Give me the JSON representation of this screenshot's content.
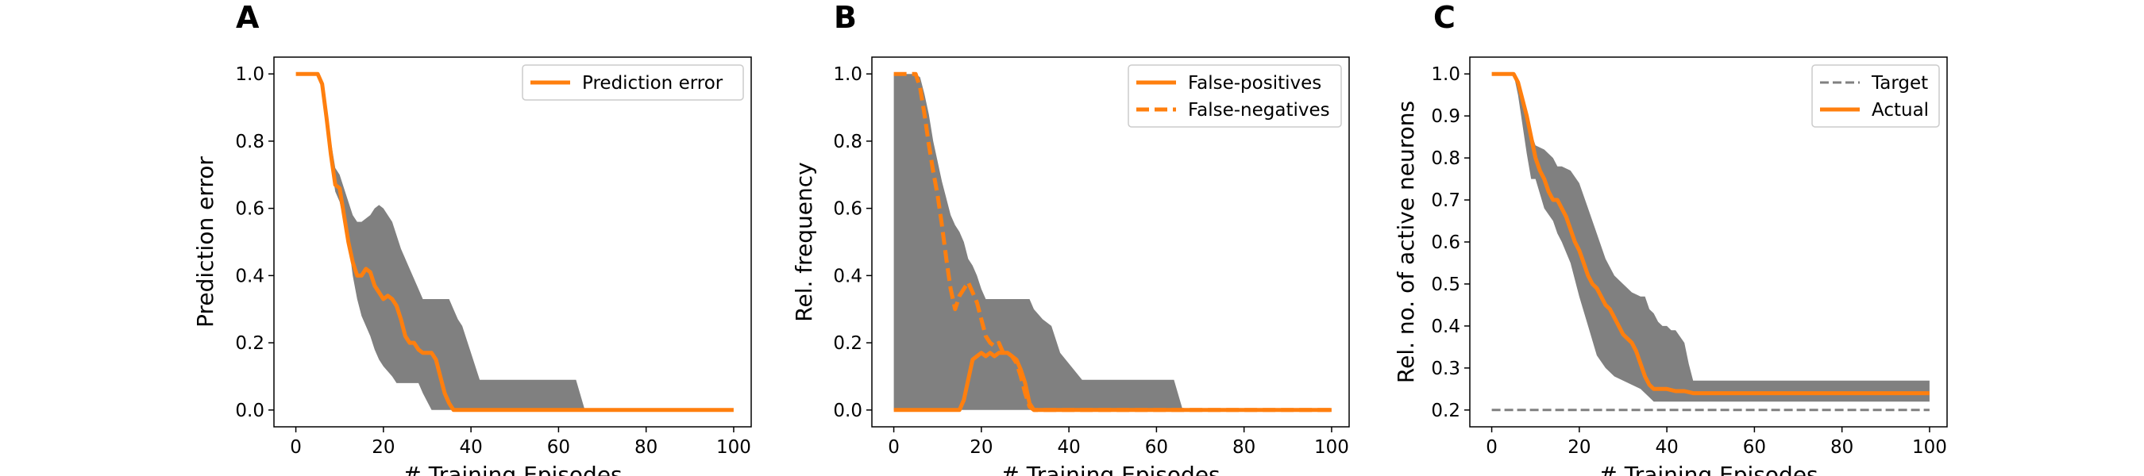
{
  "colors": {
    "actual": "#ff7f0e",
    "band": "#808080",
    "target": "#808080",
    "axis": "#000000",
    "legend_border": "#cccccc"
  },
  "chart_data": [
    {
      "panel_label": "A",
      "type": "line",
      "xlabel": "# Training Episodes",
      "ylabel": "Prediction error",
      "xlim": [
        -5,
        104
      ],
      "ylim": [
        -0.05,
        1.05
      ],
      "xticks": [
        0,
        20,
        40,
        60,
        80,
        100
      ],
      "yticks": [
        0.0,
        0.2,
        0.4,
        0.6,
        0.8,
        1.0
      ],
      "ytick_format": 1,
      "grid": false,
      "legend_position": "top-right",
      "band": {
        "x": [
          0,
          5,
          6,
          7,
          8,
          9,
          10,
          12,
          13,
          14,
          15,
          17,
          18,
          19,
          20,
          22,
          23,
          24,
          26,
          28,
          29,
          31,
          33,
          35,
          36,
          37,
          38,
          40,
          42,
          64,
          66,
          100
        ],
        "upper": [
          1.0,
          1.0,
          0.98,
          0.9,
          0.8,
          0.72,
          0.7,
          0.62,
          0.58,
          0.56,
          0.56,
          0.58,
          0.6,
          0.61,
          0.6,
          0.56,
          0.52,
          0.48,
          0.42,
          0.36,
          0.33,
          0.33,
          0.33,
          0.33,
          0.3,
          0.27,
          0.25,
          0.17,
          0.09,
          0.09,
          0.0,
          0.0
        ],
        "lower": [
          1.0,
          1.0,
          0.96,
          0.85,
          0.73,
          0.65,
          0.62,
          0.5,
          0.4,
          0.33,
          0.28,
          0.22,
          0.18,
          0.15,
          0.13,
          0.1,
          0.08,
          0.08,
          0.08,
          0.08,
          0.05,
          0.0,
          0.0,
          0.0,
          0.0,
          0.0,
          0.0,
          0.0,
          0.0,
          0.0,
          0.0,
          0.0
        ]
      },
      "series": [
        {
          "name": "Prediction error",
          "style": "solid",
          "x": [
            0,
            5,
            6,
            7,
            8,
            9,
            10,
            11,
            12,
            13,
            14,
            15,
            16,
            17,
            18,
            19,
            20,
            21,
            22,
            23,
            24,
            25,
            26,
            27,
            28,
            29,
            30,
            31,
            32,
            33,
            34,
            35,
            36,
            37,
            38,
            100
          ],
          "y": [
            1.0,
            1.0,
            0.97,
            0.87,
            0.76,
            0.67,
            0.66,
            0.58,
            0.5,
            0.44,
            0.4,
            0.4,
            0.42,
            0.41,
            0.37,
            0.35,
            0.33,
            0.34,
            0.33,
            0.31,
            0.27,
            0.22,
            0.2,
            0.2,
            0.18,
            0.17,
            0.17,
            0.17,
            0.15,
            0.1,
            0.05,
            0.02,
            0.0,
            0.0,
            0.0,
            0.0
          ]
        }
      ]
    },
    {
      "panel_label": "B",
      "type": "line",
      "xlabel": "# Training Episodes",
      "ylabel": "Rel. frequency",
      "xlim": [
        -5,
        104
      ],
      "ylim": [
        -0.05,
        1.05
      ],
      "xticks": [
        0,
        20,
        40,
        60,
        80,
        100
      ],
      "yticks": [
        0.0,
        0.2,
        0.4,
        0.6,
        0.8,
        1.0
      ],
      "ytick_format": 1,
      "grid": false,
      "legend_position": "top-right",
      "band": {
        "x": [
          0,
          5,
          6,
          7,
          8,
          9,
          10,
          11,
          12,
          13,
          14,
          15,
          16,
          17,
          18,
          19,
          20,
          21,
          22,
          23,
          24,
          26,
          28,
          30,
          31,
          32,
          34,
          36,
          38,
          43,
          64,
          66,
          100
        ],
        "upper": [
          1.0,
          1.0,
          0.99,
          0.94,
          0.88,
          0.8,
          0.74,
          0.68,
          0.63,
          0.58,
          0.55,
          0.53,
          0.5,
          0.45,
          0.43,
          0.4,
          0.36,
          0.33,
          0.33,
          0.33,
          0.33,
          0.33,
          0.33,
          0.33,
          0.33,
          0.3,
          0.27,
          0.25,
          0.17,
          0.09,
          0.09,
          0.0,
          0.0
        ],
        "lower": [
          0.0,
          0.0,
          0.0,
          0.0,
          0.0,
          0.0,
          0.0,
          0.0,
          0.0,
          0.0,
          0.0,
          0.0,
          0.0,
          0.0,
          0.0,
          0.0,
          0.0,
          0.0,
          0.0,
          0.0,
          0.0,
          0.0,
          0.0,
          0.0,
          0.0,
          0.0,
          0.0,
          0.0,
          0.0,
          0.0,
          0.0,
          0.0,
          0.0
        ]
      },
      "series": [
        {
          "name": "False-positives",
          "style": "solid",
          "x": [
            0,
            15,
            16,
            17,
            18,
            19,
            20,
            21,
            22,
            23,
            24,
            25,
            26,
            27,
            28,
            29,
            30,
            31,
            32,
            100
          ],
          "y": [
            0.0,
            0.0,
            0.03,
            0.09,
            0.15,
            0.16,
            0.17,
            0.16,
            0.17,
            0.16,
            0.17,
            0.17,
            0.17,
            0.16,
            0.15,
            0.12,
            0.08,
            0.02,
            0.0,
            0.0
          ]
        },
        {
          "name": "False-negatives",
          "style": "dashed",
          "x": [
            0,
            5,
            6,
            7,
            8,
            9,
            10,
            11,
            12,
            13,
            14,
            15,
            16,
            17,
            18,
            19,
            20,
            21,
            22,
            23,
            24,
            25,
            26,
            27,
            28,
            29,
            30,
            31,
            32,
            100
          ],
          "y": [
            1.0,
            1.0,
            0.96,
            0.88,
            0.79,
            0.71,
            0.64,
            0.55,
            0.45,
            0.36,
            0.3,
            0.34,
            0.36,
            0.38,
            0.35,
            0.32,
            0.27,
            0.22,
            0.2,
            0.19,
            0.2,
            0.17,
            0.17,
            0.16,
            0.14,
            0.1,
            0.05,
            0.01,
            0.0,
            0.0
          ]
        }
      ]
    },
    {
      "panel_label": "C",
      "type": "line",
      "xlabel": "# Training Episodes",
      "ylabel": "Rel. no. of active neurons",
      "xlim": [
        -5,
        104
      ],
      "ylim": [
        0.16,
        1.04
      ],
      "xticks": [
        0,
        20,
        40,
        60,
        80,
        100
      ],
      "yticks": [
        0.2,
        0.3,
        0.4,
        0.5,
        0.6,
        0.7,
        0.8,
        0.9,
        1.0
      ],
      "ytick_format": 1,
      "grid": false,
      "legend_position": "top-right",
      "band": {
        "x": [
          0,
          5,
          6,
          7,
          8,
          9,
          10,
          12,
          14,
          15,
          16,
          18,
          20,
          22,
          24,
          26,
          28,
          30,
          32,
          34,
          35,
          36,
          37,
          38,
          39,
          40,
          41,
          42,
          44,
          45,
          46,
          100
        ],
        "upper": [
          1.0,
          1.0,
          0.99,
          0.95,
          0.9,
          0.86,
          0.83,
          0.82,
          0.8,
          0.78,
          0.78,
          0.77,
          0.74,
          0.68,
          0.62,
          0.56,
          0.52,
          0.5,
          0.48,
          0.47,
          0.47,
          0.44,
          0.43,
          0.41,
          0.4,
          0.4,
          0.39,
          0.39,
          0.36,
          0.31,
          0.27,
          0.27
        ],
        "lower": [
          1.0,
          1.0,
          0.95,
          0.88,
          0.81,
          0.75,
          0.75,
          0.68,
          0.65,
          0.62,
          0.6,
          0.55,
          0.47,
          0.4,
          0.33,
          0.3,
          0.28,
          0.27,
          0.26,
          0.25,
          0.24,
          0.23,
          0.22,
          0.22,
          0.22,
          0.22,
          0.22,
          0.22,
          0.22,
          0.22,
          0.22,
          0.22
        ]
      },
      "target": {
        "name": "Target",
        "style": "dashed",
        "x": [
          0,
          100
        ],
        "y": [
          0.2,
          0.2
        ]
      },
      "series": [
        {
          "name": "Actual",
          "style": "solid",
          "x": [
            0,
            5,
            6,
            7,
            8,
            9,
            10,
            11,
            12,
            13,
            14,
            15,
            16,
            17,
            18,
            19,
            20,
            21,
            22,
            23,
            24,
            25,
            26,
            27,
            28,
            29,
            30,
            31,
            32,
            33,
            34,
            35,
            36,
            37,
            38,
            39,
            40,
            42,
            44,
            46,
            100
          ],
          "y": [
            1.0,
            1.0,
            0.98,
            0.94,
            0.9,
            0.85,
            0.8,
            0.77,
            0.75,
            0.72,
            0.7,
            0.7,
            0.68,
            0.66,
            0.63,
            0.6,
            0.58,
            0.55,
            0.52,
            0.5,
            0.49,
            0.47,
            0.45,
            0.44,
            0.42,
            0.4,
            0.38,
            0.37,
            0.36,
            0.34,
            0.31,
            0.28,
            0.26,
            0.25,
            0.25,
            0.25,
            0.25,
            0.245,
            0.245,
            0.24,
            0.24
          ]
        }
      ]
    }
  ]
}
